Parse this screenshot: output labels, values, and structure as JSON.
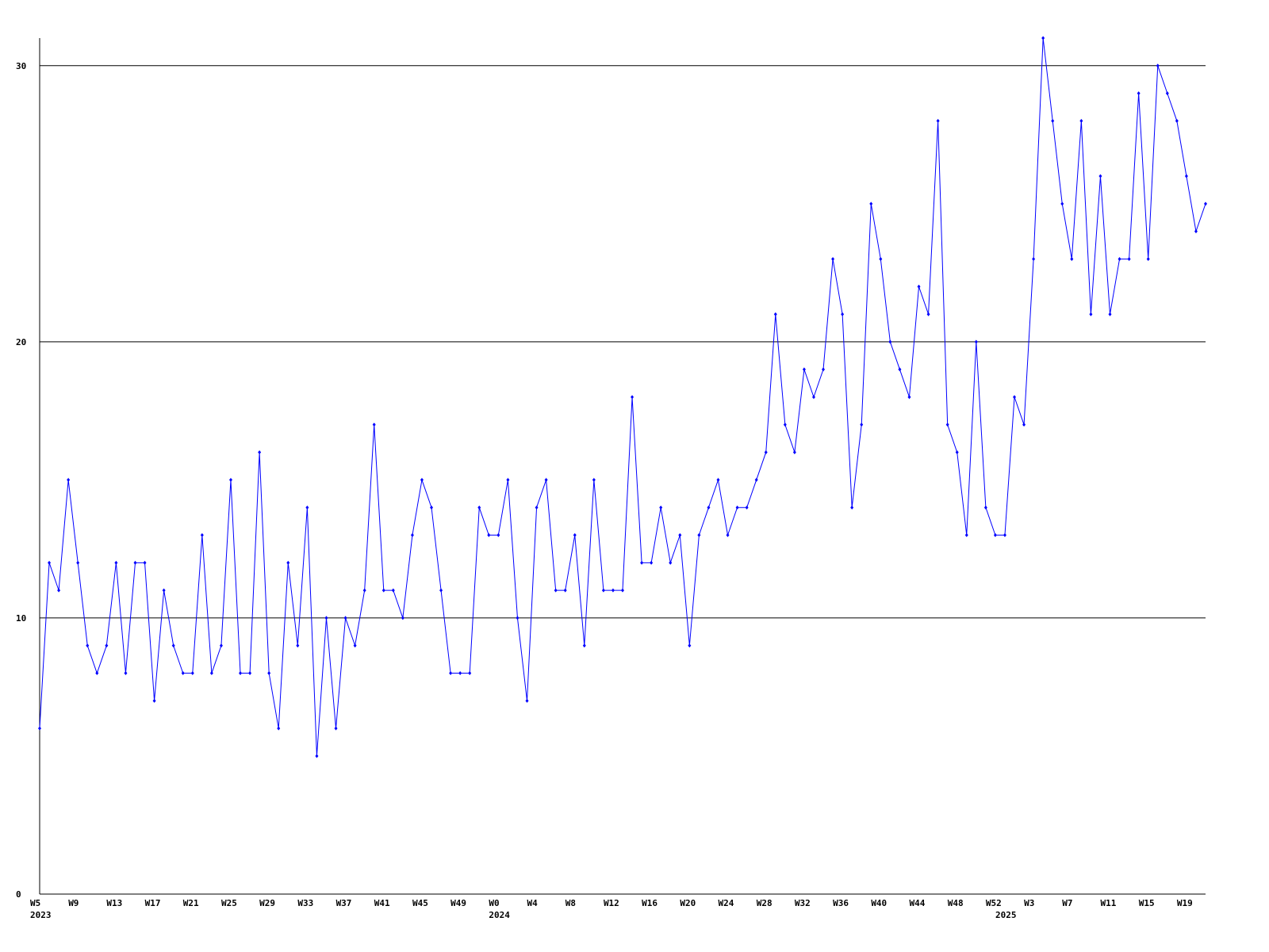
{
  "chart_data": {
    "type": "line",
    "color": "#0000ff",
    "grid": true,
    "categories": [
      "W5",
      null,
      null,
      null,
      "W9",
      null,
      null,
      null,
      "W13",
      null,
      null,
      null,
      "W17",
      null,
      null,
      null,
      "W21",
      null,
      null,
      null,
      "W25",
      null,
      null,
      null,
      "W29",
      null,
      null,
      null,
      "W33",
      null,
      null,
      null,
      "W37",
      null,
      null,
      null,
      "W41",
      null,
      null,
      null,
      "W45",
      null,
      null,
      null,
      "W49",
      null,
      null,
      null,
      "W0",
      null,
      null,
      null,
      "W4",
      null,
      null,
      null,
      "W8",
      null,
      null,
      null,
      "W12",
      null,
      null,
      null,
      "W16",
      null,
      null,
      null,
      "W20",
      null,
      null,
      null,
      "W24",
      null,
      null,
      null,
      "W28",
      null,
      null,
      null,
      "W32",
      null,
      null,
      null,
      "W36",
      null,
      null,
      null,
      "W40",
      null,
      null,
      null,
      "W44",
      null,
      null,
      null,
      "W48",
      null,
      null,
      null,
      "W52",
      null,
      null,
      null,
      "W3",
      null,
      null,
      null,
      "W7",
      null,
      null,
      null,
      "W11",
      null,
      null,
      null,
      "W15",
      null,
      null,
      null,
      "W19",
      null,
      null
    ],
    "year_labels": [
      {
        "category": 0,
        "label": "2023"
      },
      {
        "category": 48,
        "label": "2024"
      },
      {
        "category": 101,
        "label": "2025"
      }
    ],
    "values": [
      6,
      12,
      11,
      15,
      12,
      9,
      8,
      9,
      12,
      8,
      12,
      12,
      7,
      11,
      9,
      8,
      8,
      13,
      8,
      9,
      15,
      8,
      8,
      16,
      8,
      6,
      12,
      9,
      14,
      5,
      10,
      6,
      10,
      9,
      11,
      17,
      11,
      11,
      10,
      13,
      15,
      14,
      11,
      8,
      8,
      8,
      14,
      13,
      13,
      15,
      10,
      7,
      14,
      15,
      11,
      11,
      13,
      9,
      15,
      11,
      11,
      11,
      18,
      12,
      12,
      14,
      12,
      13,
      9,
      13,
      14,
      15,
      13,
      14,
      14,
      15,
      16,
      21,
      17,
      16,
      19,
      18,
      19,
      23,
      21,
      14,
      17,
      25,
      23,
      20,
      19,
      18,
      22,
      21,
      28,
      17,
      16,
      13,
      20,
      14,
      13,
      13,
      18,
      17,
      23,
      31,
      28,
      25,
      23,
      28,
      21,
      26,
      21,
      23,
      23,
      29,
      23,
      30,
      29,
      28,
      26,
      24,
      25
    ],
    "ylim": [
      0,
      31
    ],
    "yticks": [
      0,
      10,
      20,
      30
    ]
  }
}
